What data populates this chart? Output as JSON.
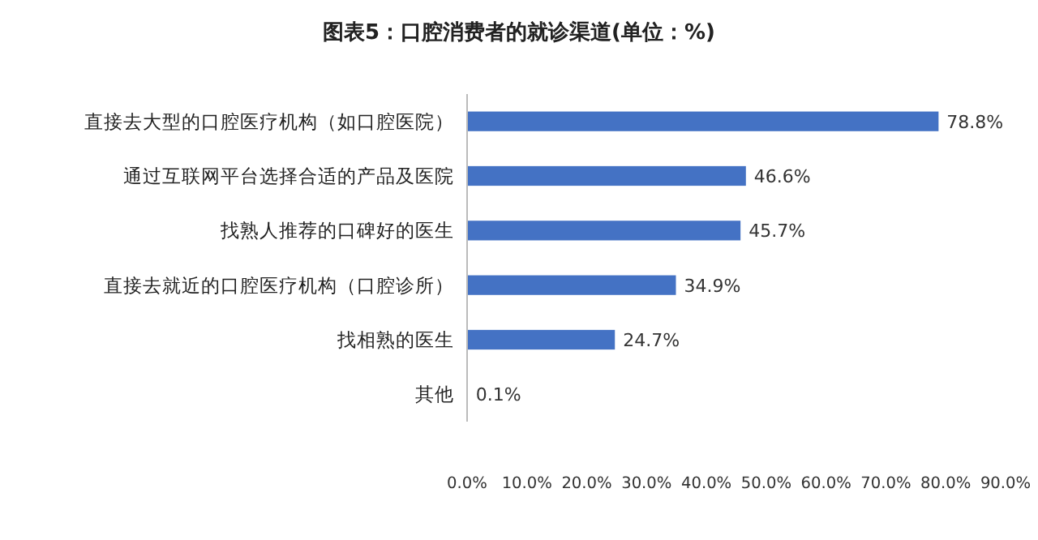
{
  "chart_data": {
    "type": "bar",
    "orientation": "horizontal",
    "title": "图表5：口腔消费者的就诊渠道(单位：%)",
    "categories": [
      "直接去大型的口腔医疗机构（如口腔医院）",
      "通过互联网平台选择合适的产品及医院",
      "找熟人推荐的口碑好的医生",
      "直接去就近的口腔医疗机构（口腔诊所）",
      "找相熟的医生",
      "其他"
    ],
    "values": [
      78.8,
      46.6,
      45.7,
      34.9,
      24.7,
      0.1
    ],
    "value_labels": [
      "78.8%",
      "46.6%",
      "45.7%",
      "34.9%",
      "24.7%",
      "0.1%"
    ],
    "color": "#4472c4",
    "xlim": [
      0,
      90
    ],
    "xticks": [
      {
        "value": 0,
        "label": "0.0%"
      },
      {
        "value": 10,
        "label": "10.0%"
      },
      {
        "value": 20,
        "label": "20.0%"
      },
      {
        "value": 30,
        "label": "30.0%"
      },
      {
        "value": 40,
        "label": "40.0%"
      },
      {
        "value": 50,
        "label": "50.0%"
      },
      {
        "value": 60,
        "label": "60.0%"
      },
      {
        "value": 70,
        "label": "70.0%"
      },
      {
        "value": 80,
        "label": "80.0%"
      },
      {
        "value": 90,
        "label": "90.0%"
      }
    ],
    "grid": false
  }
}
